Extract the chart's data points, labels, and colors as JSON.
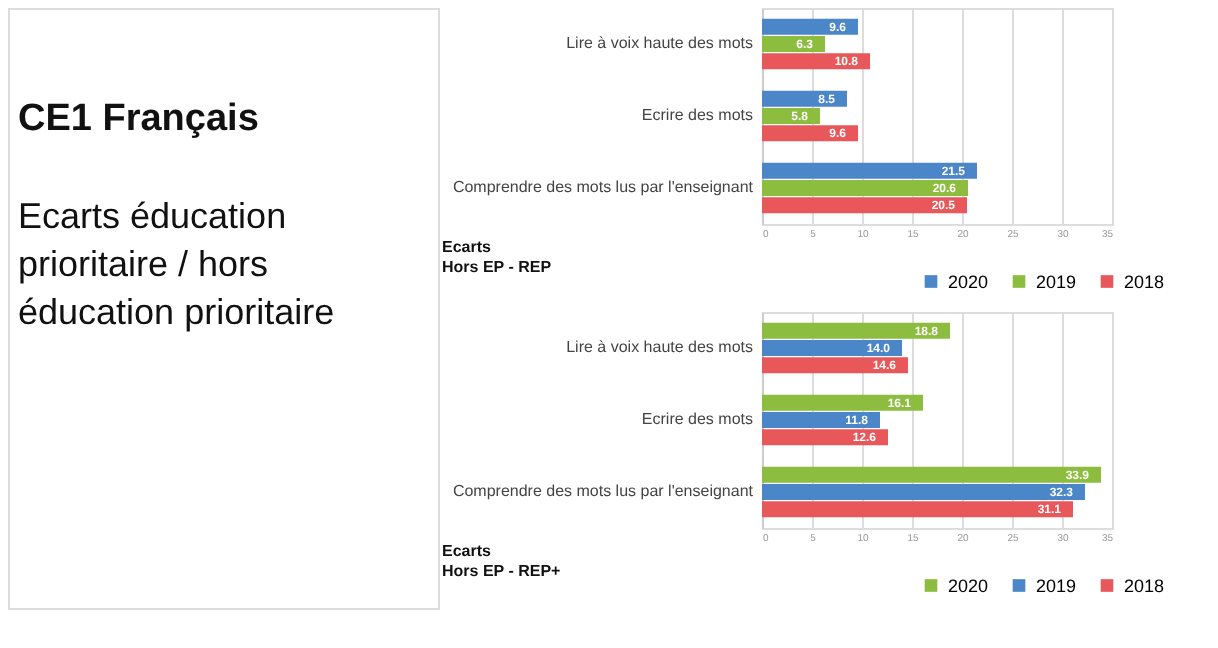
{
  "chart_data": [
    {
      "type": "other",
      "title": "CE1 Français",
      "subtitle": "Ecarts éducation\nprioritaire / hors\néducation prioritaire"
    },
    {
      "type": "bar",
      "orientation": "horizontal",
      "categories": [
        "Lire à voix haute des mots",
        "Ecrire des mots",
        "Comprendre des mots lus par l'enseignant"
      ],
      "series": [
        {
          "name": "2020",
          "color": "#4a86c8",
          "values": [
            9.6,
            8.5,
            21.5
          ]
        },
        {
          "name": "2019",
          "color": "#8cbd3f",
          "values": [
            6.3,
            5.8,
            20.6
          ]
        },
        {
          "name": "2018",
          "color": "#e8575a",
          "values": [
            10.8,
            9.6,
            20.5
          ]
        }
      ],
      "xlim": [
        0,
        35
      ],
      "xticks": [
        0,
        5,
        10,
        15,
        20,
        25,
        30,
        35
      ],
      "grid": "x",
      "legend": "bottom right",
      "data_labels": true,
      "annotations": [
        "Ecarts\nHors EP - REP"
      ]
    },
    {
      "type": "bar",
      "orientation": "horizontal",
      "categories": [
        "Lire à voix haute des mots",
        "Ecrire des mots",
        "Comprendre des mots lus par l'enseignant"
      ],
      "series": [
        {
          "name": "2020",
          "color": "#8cbd3f",
          "values": [
            18.8,
            16.1,
            33.9
          ],
          "value_labels": [
            "18.8",
            "16.1",
            "33.9"
          ]
        },
        {
          "name": "2019",
          "color": "#4a86c8",
          "values": [
            14.0,
            11.8,
            32.3
          ],
          "value_labels": [
            "14.0",
            "11.8",
            "32.3"
          ]
        },
        {
          "name": "2018",
          "color": "#e8575a",
          "values": [
            14.6,
            12.6,
            31.1
          ],
          "value_labels": [
            "14.6",
            "12.6",
            "31.1"
          ]
        }
      ],
      "xlim": [
        0,
        35
      ],
      "xticks": [
        0,
        5,
        10,
        15,
        20,
        25,
        30,
        35
      ],
      "grid": "x",
      "legend": "bottom right",
      "annotations": [
        "Ecarts\nHors EP - REP+"
      ]
    }
  ]
}
